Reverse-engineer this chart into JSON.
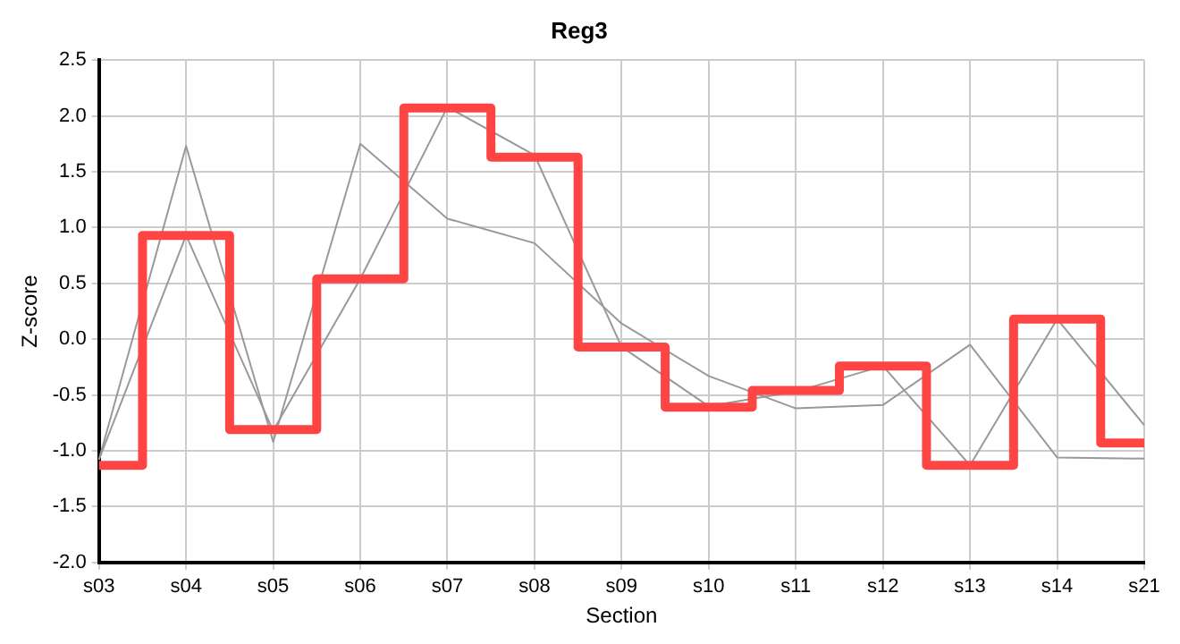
{
  "chart_data": {
    "type": "line",
    "title": "Reg3",
    "xlabel": "Section",
    "ylabel": "Z-score",
    "categories": [
      "s03",
      "s04",
      "s05",
      "s06",
      "s07",
      "s08",
      "s09",
      "s10",
      "s11",
      "s12",
      "s13",
      "s14",
      "s21"
    ],
    "series": [
      {
        "type": "line",
        "color": "#999999",
        "values": [
          -1.08,
          1.73,
          -0.92,
          1.75,
          1.08,
          0.86,
          0.14,
          -0.33,
          -0.62,
          -0.59,
          -0.05,
          -1.06,
          -1.07
        ]
      },
      {
        "type": "line",
        "color": "#999999",
        "values": [
          -1.08,
          0.93,
          -0.82,
          0.54,
          2.08,
          1.65,
          -0.07,
          -0.6,
          -0.47,
          -0.24,
          -1.13,
          0.18,
          -0.77
        ]
      },
      {
        "type": "step",
        "color": "#ff4444",
        "values": [
          -1.13,
          0.93,
          -0.81,
          0.54,
          2.07,
          1.63,
          -0.07,
          -0.61,
          -0.46,
          -0.24,
          -1.13,
          0.18,
          -0.93
        ]
      }
    ],
    "ylim": [
      -2,
      2.5
    ],
    "yticks": [
      {
        "value": -2,
        "label": "-2.0"
      },
      -1.5,
      {
        "value": -1,
        "label": "-1.0"
      },
      -0.5,
      {
        "value": 0,
        "label": "0.0"
      },
      0.5,
      {
        "value": 1,
        "label": "1.0"
      },
      1.5,
      {
        "value": 2,
        "label": "2.0"
      },
      2.5
    ],
    "grid": true,
    "legend": false,
    "marker": "none"
  }
}
